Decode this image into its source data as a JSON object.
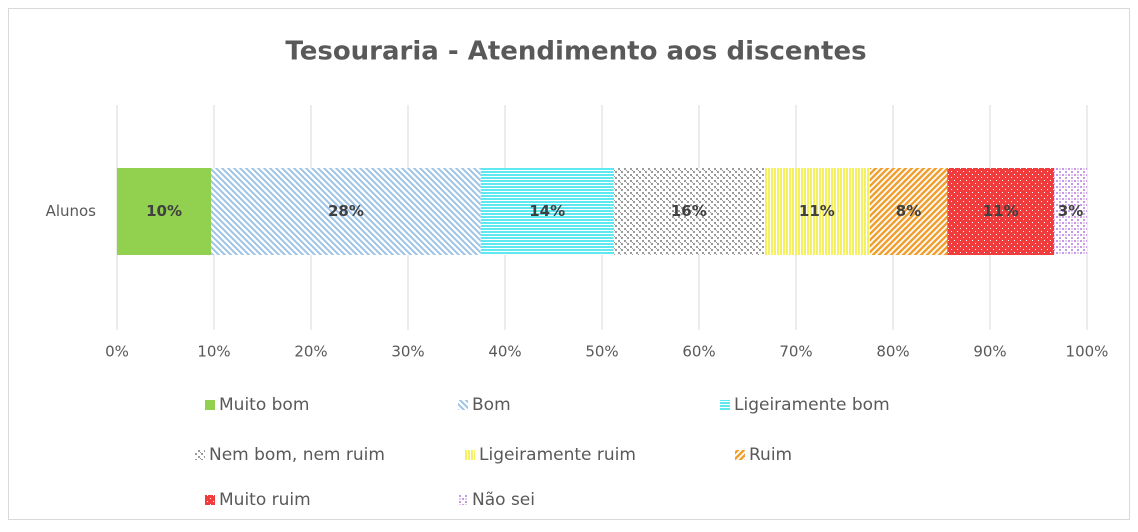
{
  "chart_data": {
    "type": "stacked_bar_horizontal",
    "title": "Tesouraria - Atendimento aos discentes",
    "categories": [
      "Alunos"
    ],
    "series": [
      {
        "name": "Muito bom",
        "color": "#92d050",
        "values": [
          9.7
        ],
        "value_labels": [
          "10%"
        ]
      },
      {
        "name": "Bom",
        "color": "#9dc3e6",
        "values": [
          27.8
        ],
        "value_labels": [
          "28%"
        ]
      },
      {
        "name": "Ligeiramente bom",
        "color": "#5ee8f0",
        "values": [
          13.7
        ],
        "value_labels": [
          "14%"
        ]
      },
      {
        "name": "Nem bom, nem ruim",
        "color": "#9a9a9a",
        "values": [
          15.5
        ],
        "value_labels": [
          "16%"
        ]
      },
      {
        "name": "Ligeiramente ruim",
        "color": "#f5f060",
        "values": [
          10.9
        ],
        "value_labels": [
          "11%"
        ]
      },
      {
        "name": "Ruim",
        "color": "#f0a030",
        "values": [
          8.0
        ],
        "value_labels": [
          "8%"
        ]
      },
      {
        "name": "Muito ruim",
        "color": "#f03c3c",
        "values": [
          11.0
        ],
        "value_labels": [
          "11%"
        ]
      },
      {
        "name": "Não sei",
        "color": "#c89be8",
        "values": [
          3.4
        ],
        "value_labels": [
          "3%"
        ]
      }
    ],
    "xlim": [
      0,
      100
    ],
    "xticks": [
      {
        "value": 0,
        "label": "0%"
      },
      {
        "value": 10,
        "label": "10%"
      },
      {
        "value": 20,
        "label": "20%"
      },
      {
        "value": 30,
        "label": "30%"
      },
      {
        "value": 40,
        "label": "40%"
      },
      {
        "value": 50,
        "label": "50%"
      },
      {
        "value": 60,
        "label": "60%"
      },
      {
        "value": 70,
        "label": "70%"
      },
      {
        "value": 80,
        "label": "80%"
      },
      {
        "value": 90,
        "label": "90%"
      },
      {
        "value": 100,
        "label": "100%"
      }
    ],
    "grid": true
  }
}
